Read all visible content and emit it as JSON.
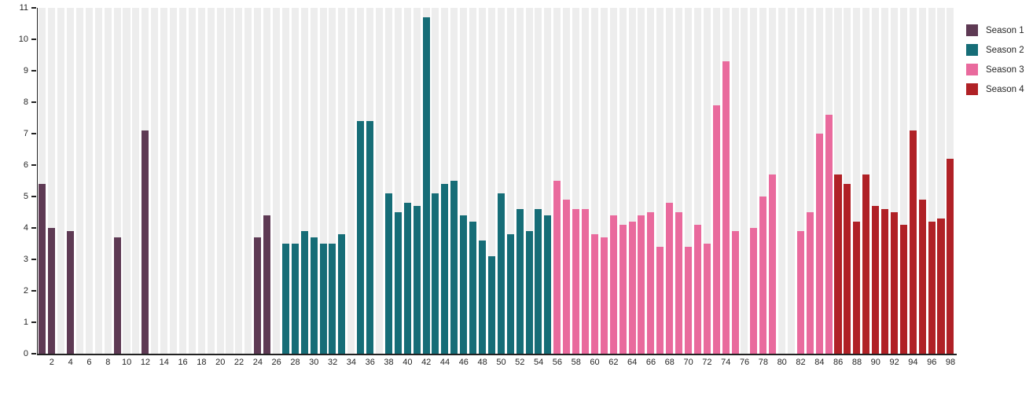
{
  "styles": {
    "background": "#ffffff",
    "stripe_color": "#ededed",
    "axis_color": "#222222",
    "text_color": "#262626"
  },
  "chart_data": {
    "type": "bar",
    "title": "",
    "xlabel": "",
    "ylabel": "",
    "grid": "vertical-stripes",
    "legend_position": "top-right",
    "x_axis": {
      "min": 1,
      "max": 98,
      "tick_labels": [
        2,
        4,
        6,
        8,
        10,
        12,
        14,
        16,
        18,
        20,
        22,
        24,
        26,
        28,
        30,
        32,
        34,
        36,
        38,
        40,
        42,
        44,
        46,
        48,
        50,
        52,
        54,
        56,
        58,
        60,
        62,
        64,
        66,
        68,
        70,
        72,
        74,
        76,
        78,
        80,
        82,
        84,
        86,
        88,
        90,
        92,
        94,
        96,
        98
      ]
    },
    "y_axis": {
      "min": 0,
      "max": 11,
      "ticks": [
        0,
        1,
        2,
        3,
        4,
        5,
        6,
        7,
        8,
        9,
        10,
        11
      ]
    },
    "series": [
      {
        "name": "Season 1",
        "color": "#5e3a54",
        "points": {
          "1": 5.4,
          "2": 4.0,
          "4": 3.9,
          "9": 3.7,
          "12": 7.1,
          "24": 3.7,
          "25": 4.4
        }
      },
      {
        "name": "Season 2",
        "color": "#166d77",
        "points": {
          "27": 3.5,
          "28": 3.5,
          "29": 3.9,
          "30": 3.7,
          "31": 3.5,
          "32": 3.5,
          "33": 3.8,
          "35": 7.4,
          "36": 7.4,
          "38": 5.1,
          "39": 4.5,
          "40": 4.8,
          "41": 4.7,
          "42": 10.7,
          "43": 5.1,
          "44": 5.4,
          "45": 5.5,
          "46": 4.4,
          "47": 4.2,
          "48": 3.6,
          "49": 3.1,
          "50": 5.1,
          "51": 3.8,
          "52": 4.6,
          "53": 3.9,
          "54": 4.6,
          "55": 4.4
        }
      },
      {
        "name": "Season 3",
        "color": "#e96a9d",
        "points": {
          "56": 5.5,
          "57": 4.9,
          "58": 4.6,
          "59": 4.6,
          "60": 3.8,
          "61": 3.7,
          "62": 4.4,
          "63": 4.1,
          "64": 4.2,
          "65": 4.4,
          "66": 4.5,
          "67": 3.4,
          "68": 4.8,
          "69": 4.5,
          "70": 3.4,
          "71": 4.1,
          "72": 3.5,
          "73": 7.9,
          "74": 9.3,
          "75": 3.9,
          "77": 4.0,
          "78": 5.0,
          "79": 5.7,
          "82": 3.9,
          "83": 4.5,
          "84": 7.0,
          "85": 7.6
        }
      },
      {
        "name": "Season 4",
        "color": "#b02126",
        "points": {
          "86": 5.7,
          "87": 5.4,
          "88": 4.2,
          "89": 5.7,
          "90": 4.7,
          "91": 4.6,
          "92": 4.5,
          "93": 4.1,
          "94": 7.1,
          "95": 4.9,
          "96": 4.2,
          "97": 4.3,
          "98": 6.2
        }
      }
    ]
  }
}
